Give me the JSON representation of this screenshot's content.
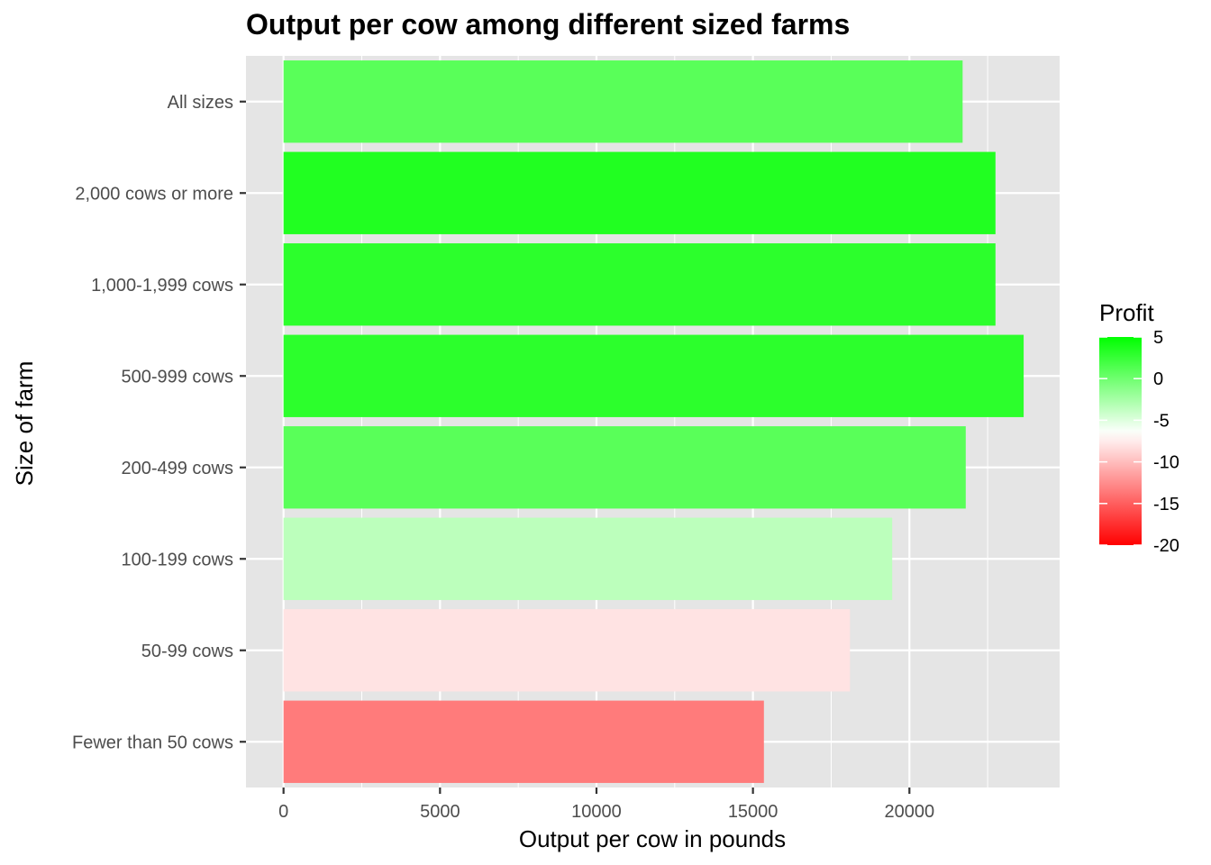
{
  "chart_data": {
    "type": "bar",
    "orientation": "horizontal",
    "title": "Output per cow among different sized farms",
    "xlabel": "Output per cow in pounds",
    "ylabel": "Size of farm",
    "categories": [
      "Fewer than 50 cows",
      "50-99 cows",
      "100-199 cows",
      "200-499 cows",
      "500-999 cows",
      "1,000-1,999 cows",
      "2,000 cows or more",
      "All sizes"
    ],
    "values": [
      15350,
      18100,
      19450,
      21800,
      23650,
      22750,
      22750,
      21700
    ],
    "profit": [
      -13.5,
      -8,
      -3.5,
      1,
      3,
      3,
      3.5,
      1
    ],
    "xlim": [
      -1200,
      24800
    ],
    "xticks": [
      0,
      5000,
      10000,
      15000,
      20000
    ],
    "xtick_labels": [
      "0",
      "5000",
      "10000",
      "15000",
      "20000"
    ],
    "grid": true,
    "legend": {
      "title": "Profit",
      "position": "right",
      "range": [
        -20,
        5
      ],
      "ticks": [
        5,
        0,
        -5,
        -10,
        -15,
        -20
      ],
      "tick_labels": [
        "5",
        "0",
        "-5",
        "-10",
        "-15",
        "-20"
      ],
      "colors": {
        "low": "#ff0000",
        "mid": "#ffffff",
        "high": "#00ff00",
        "midpoint": -6.5
      }
    },
    "panel_background": "#e5e5e5",
    "grid_color": "#ffffff"
  }
}
